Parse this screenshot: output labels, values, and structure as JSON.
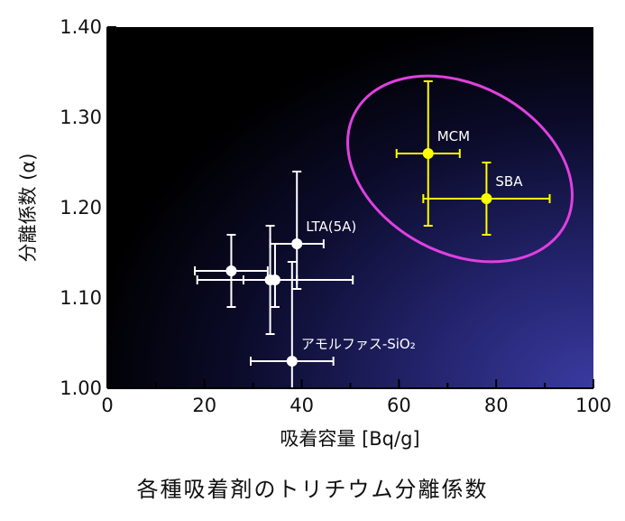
{
  "caption": "各種吸着剤のトリチウム分離係数",
  "chart_data": {
    "type": "scatter",
    "title": "",
    "xlabel": "吸着容量 [Bq/g]",
    "ylabel": "分離係数 (α)",
    "xlim": [
      0,
      100
    ],
    "ylim": [
      1.0,
      1.4
    ],
    "x_ticks": [
      "0",
      "20",
      "40",
      "60",
      "80",
      "100"
    ],
    "y_ticks": [
      "1.00",
      "1.10",
      "1.20",
      "1.30",
      "1.40"
    ],
    "grid": false,
    "colors": {
      "background_dark": "#000000",
      "background_light": "#3a3aa0",
      "white_series": "#ffffff",
      "yellow_series": "#ffff00",
      "ellipse": "#e040e0"
    },
    "points": [
      {
        "x": 66,
        "y": 1.26,
        "xerr": 6.5,
        "yerr_minus": 0.08,
        "yerr_plus": 0.08,
        "color": "#ffff00",
        "label": "MCM"
      },
      {
        "x": 78,
        "y": 1.21,
        "xerr": 13,
        "yerr_minus": 0.04,
        "yerr_plus": 0.04,
        "color": "#ffff00",
        "label": "SBA"
      },
      {
        "x": 39,
        "y": 1.16,
        "xerr": 5.5,
        "yerr_minus": 0.05,
        "yerr_plus": 0.08,
        "color": "#ffffff",
        "label": "LTA(5A)"
      },
      {
        "x": 25.5,
        "y": 1.13,
        "xerr": 7.5,
        "yerr_minus": 0.04,
        "yerr_plus": 0.04,
        "color": "#ffffff",
        "label": ""
      },
      {
        "x": 33.5,
        "y": 1.12,
        "xerr": 5.5,
        "yerr_minus": 0.06,
        "yerr_plus": 0.06,
        "color": "#ffffff",
        "label": ""
      },
      {
        "x": 34.5,
        "y": 1.12,
        "xerr": 16,
        "yerr_minus": 0.03,
        "yerr_plus": 0.04,
        "color": "#ffffff",
        "label": ""
      },
      {
        "x": 38,
        "y": 1.03,
        "xerr": 8.5,
        "yerr_minus": 0.03,
        "yerr_plus": 0.11,
        "color": "#ffffff",
        "label": "アモルファス-SiO₂"
      }
    ]
  }
}
